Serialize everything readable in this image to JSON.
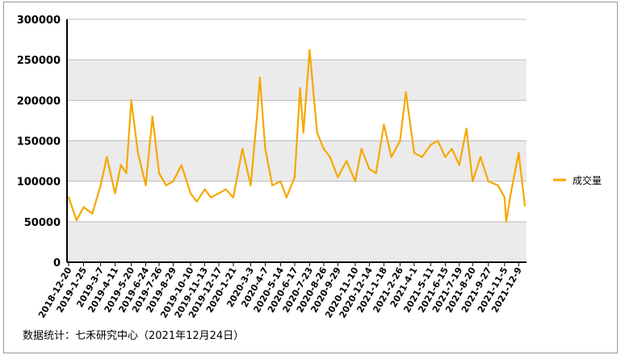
{
  "chart_data": {
    "type": "line",
    "title": "",
    "xlabel": "",
    "ylabel": "",
    "ylim": [
      0,
      300000
    ],
    "yticks": [
      0,
      50000,
      100000,
      150000,
      200000,
      250000,
      300000
    ],
    "grid": "horizontal, alternating grey bands",
    "legend_position": "right",
    "x_tick_labels": [
      "2018-12-20",
      "2019-1-25",
      "2019-3-7",
      "2019-4-11",
      "2019-5-20",
      "2019-6-24",
      "2019-7-26",
      "2019-8-29",
      "2019-10-10",
      "2019-11-13",
      "2019-12-17",
      "2020-1-21",
      "2020-3-3",
      "2020-4-7",
      "2020-5-14",
      "2020-6-17",
      "2020-7-23",
      "2020-8-26",
      "2020-9-29",
      "2020-11-10",
      "2020-12-14",
      "2021-1-18",
      "2021-2-26",
      "2021-4-1",
      "2021-5-11",
      "2021-6-15",
      "2021-7-19",
      "2021-8-20",
      "2021-9-27",
      "2021-11-5",
      "2021-12-9"
    ],
    "series": [
      {
        "name": "成交量",
        "color": "#F5A800",
        "x": [
          "2018-12-20",
          "2019-1-8",
          "2019-1-25",
          "2019-2-15",
          "2019-3-7",
          "2019-3-22",
          "2019-4-11",
          "2019-4-25",
          "2019-5-8",
          "2019-5-20",
          "2019-6-5",
          "2019-6-24",
          "2019-7-10",
          "2019-7-26",
          "2019-8-12",
          "2019-8-29",
          "2019-9-18",
          "2019-10-10",
          "2019-10-25",
          "2019-11-13",
          "2019-11-28",
          "2019-12-17",
          "2020-1-3",
          "2020-1-21",
          "2020-2-12",
          "2020-3-3",
          "2020-3-18",
          "2020-3-25",
          "2020-4-7",
          "2020-4-24",
          "2020-5-14",
          "2020-5-28",
          "2020-6-17",
          "2020-6-30",
          "2020-7-8",
          "2020-7-23",
          "2020-8-10",
          "2020-8-26",
          "2020-9-10",
          "2020-9-29",
          "2020-10-20",
          "2020-11-10",
          "2020-11-25",
          "2020-12-14",
          "2020-12-30",
          "2021-1-18",
          "2021-2-5",
          "2021-2-26",
          "2021-3-12",
          "2021-4-1",
          "2021-4-20",
          "2021-5-11",
          "2021-5-28",
          "2021-6-15",
          "2021-7-1",
          "2021-7-19",
          "2021-8-5",
          "2021-8-20",
          "2021-9-8",
          "2021-9-27",
          "2021-10-20",
          "2021-11-5",
          "2021-11-9",
          "2021-11-20",
          "2021-12-9",
          "2021-12-24"
        ],
        "y": [
          80000,
          52000,
          68000,
          60000,
          95000,
          130000,
          85000,
          120000,
          110000,
          200000,
          135000,
          95000,
          180000,
          110000,
          95000,
          100000,
          120000,
          85000,
          75000,
          90000,
          80000,
          85000,
          90000,
          80000,
          140000,
          95000,
          180000,
          228000,
          140000,
          95000,
          100000,
          80000,
          105000,
          215000,
          160000,
          262000,
          160000,
          140000,
          130000,
          105000,
          125000,
          100000,
          140000,
          115000,
          110000,
          170000,
          130000,
          150000,
          210000,
          135000,
          130000,
          145000,
          150000,
          130000,
          140000,
          120000,
          165000,
          100000,
          130000,
          100000,
          95000,
          80000,
          50000,
          85000,
          135000,
          70000
        ]
      }
    ]
  },
  "source_note": "数据统计：七禾研究中心（2021年12月24日）"
}
